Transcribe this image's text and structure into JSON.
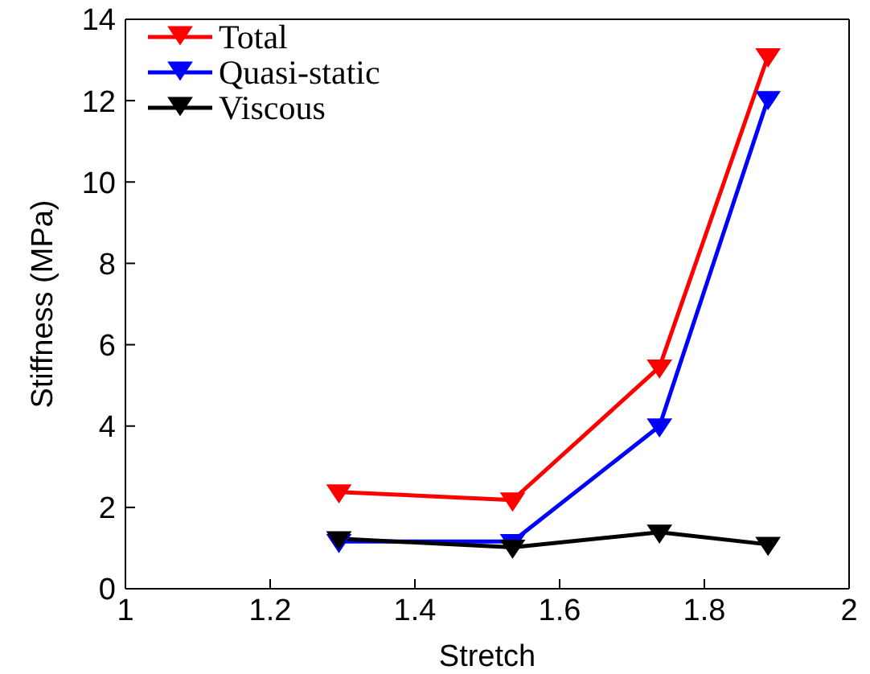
{
  "chart_data": {
    "type": "line",
    "xlabel": "Stretch",
    "ylabel": "Stiffness (MPa)",
    "x": [
      1.295,
      1.535,
      1.738,
      1.888
    ],
    "series": [
      {
        "name": "Total",
        "color": "#ff0000",
        "values": [
          2.38,
          2.18,
          5.45,
          13.1
        ]
      },
      {
        "name": "Quasi-static",
        "color": "#0000ff",
        "values": [
          1.16,
          1.16,
          4.0,
          12.05
        ]
      },
      {
        "name": "Viscous",
        "color": "#000000",
        "values": [
          1.23,
          1.02,
          1.39,
          1.09
        ]
      }
    ],
    "xlim": [
      1,
      2
    ],
    "xticks": [
      1,
      1.2,
      1.4,
      1.6,
      1.8,
      2
    ],
    "ylim": [
      0,
      14
    ],
    "yticks": [
      0,
      2,
      4,
      6,
      8,
      10,
      12,
      14
    ],
    "grid": false,
    "legend": "top left",
    "marker": "triangle",
    "line_style": "solid"
  }
}
